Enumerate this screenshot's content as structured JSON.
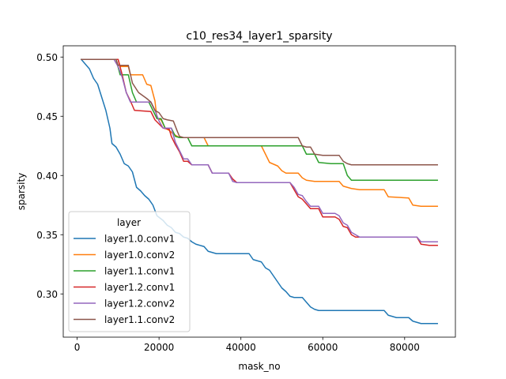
{
  "chart_data": {
    "type": "line",
    "title": "c10_res34_layer1_sparsity",
    "xlabel": "mask_no",
    "ylabel": "sparsity",
    "xlim": [
      -3400,
      92400
    ],
    "ylim": [
      0.2635,
      0.5095
    ],
    "xticks": [
      0,
      20000,
      40000,
      60000,
      80000
    ],
    "xtick_labels": [
      "0",
      "20000",
      "40000",
      "60000",
      "80000"
    ],
    "yticks": [
      0.3,
      0.35,
      0.4,
      0.45,
      0.5
    ],
    "ytick_labels": [
      "0.30",
      "0.35",
      "0.40",
      "0.45",
      "0.50"
    ],
    "grid": false,
    "legend": {
      "title": "layer",
      "location": "lower-left"
    },
    "series": [
      {
        "name": "layer1.0.conv1",
        "color": "#1f77b4",
        "points": [
          [
            1000,
            0.498
          ],
          [
            3000,
            0.49
          ],
          [
            4000,
            0.482
          ],
          [
            5000,
            0.477
          ],
          [
            6000,
            0.466
          ],
          [
            7000,
            0.455
          ],
          [
            8000,
            0.44
          ],
          [
            8500,
            0.427
          ],
          [
            9500,
            0.424
          ],
          [
            10500,
            0.418
          ],
          [
            11500,
            0.41
          ],
          [
            12500,
            0.408
          ],
          [
            13500,
            0.403
          ],
          [
            14500,
            0.39
          ],
          [
            15500,
            0.387
          ],
          [
            16500,
            0.383
          ],
          [
            17500,
            0.38
          ],
          [
            18500,
            0.375
          ],
          [
            19500,
            0.366
          ],
          [
            21000,
            0.362
          ],
          [
            22000,
            0.358
          ],
          [
            23000,
            0.356
          ],
          [
            24000,
            0.352
          ],
          [
            25000,
            0.351
          ],
          [
            26000,
            0.348
          ],
          [
            27000,
            0.347
          ],
          [
            28000,
            0.344
          ],
          [
            29000,
            0.342
          ],
          [
            31000,
            0.34
          ],
          [
            32000,
            0.336
          ],
          [
            33000,
            0.335
          ],
          [
            34000,
            0.334
          ],
          [
            42000,
            0.334
          ],
          [
            43000,
            0.329
          ],
          [
            45000,
            0.327
          ],
          [
            46000,
            0.322
          ],
          [
            47000,
            0.32
          ],
          [
            48000,
            0.315
          ],
          [
            49000,
            0.31
          ],
          [
            50000,
            0.305
          ],
          [
            51000,
            0.302
          ],
          [
            52000,
            0.298
          ],
          [
            53000,
            0.297
          ],
          [
            55000,
            0.297
          ],
          [
            56000,
            0.293
          ],
          [
            57000,
            0.289
          ],
          [
            58000,
            0.287
          ],
          [
            59000,
            0.286
          ],
          [
            75000,
            0.286
          ],
          [
            76000,
            0.282
          ],
          [
            77000,
            0.281
          ],
          [
            78000,
            0.28
          ],
          [
            81000,
            0.28
          ],
          [
            82000,
            0.277
          ],
          [
            83000,
            0.276
          ],
          [
            84000,
            0.275
          ],
          [
            88000,
            0.275
          ]
        ]
      },
      {
        "name": "layer1.0.conv2",
        "color": "#ff7f0e",
        "points": [
          [
            1000,
            0.498
          ],
          [
            10000,
            0.498
          ],
          [
            10500,
            0.492
          ],
          [
            12500,
            0.492
          ],
          [
            13000,
            0.485
          ],
          [
            16000,
            0.485
          ],
          [
            17000,
            0.477
          ],
          [
            18000,
            0.476
          ],
          [
            19000,
            0.463
          ],
          [
            19500,
            0.448
          ],
          [
            20500,
            0.447
          ],
          [
            21500,
            0.44
          ],
          [
            22500,
            0.438
          ],
          [
            23500,
            0.435
          ],
          [
            25000,
            0.432
          ],
          [
            31000,
            0.432
          ],
          [
            32000,
            0.425
          ],
          [
            45000,
            0.425
          ],
          [
            46000,
            0.418
          ],
          [
            47000,
            0.411
          ],
          [
            49000,
            0.408
          ],
          [
            50000,
            0.404
          ],
          [
            51000,
            0.402
          ],
          [
            54000,
            0.402
          ],
          [
            55000,
            0.398
          ],
          [
            56000,
            0.396
          ],
          [
            58000,
            0.395
          ],
          [
            64000,
            0.395
          ],
          [
            65000,
            0.391
          ],
          [
            67000,
            0.389
          ],
          [
            69000,
            0.388
          ],
          [
            75000,
            0.388
          ],
          [
            76000,
            0.382
          ],
          [
            81000,
            0.381
          ],
          [
            82000,
            0.375
          ],
          [
            84000,
            0.374
          ],
          [
            88000,
            0.374
          ]
        ]
      },
      {
        "name": "layer1.1.conv1",
        "color": "#2ca02c",
        "points": [
          [
            1000,
            0.498
          ],
          [
            9500,
            0.498
          ],
          [
            10500,
            0.485
          ],
          [
            12500,
            0.485
          ],
          [
            13500,
            0.47
          ],
          [
            14500,
            0.462
          ],
          [
            17500,
            0.462
          ],
          [
            18500,
            0.455
          ],
          [
            19500,
            0.448
          ],
          [
            20500,
            0.448
          ],
          [
            21500,
            0.44
          ],
          [
            23000,
            0.44
          ],
          [
            24000,
            0.433
          ],
          [
            25000,
            0.432
          ],
          [
            27000,
            0.432
          ],
          [
            28000,
            0.425
          ],
          [
            55000,
            0.425
          ],
          [
            56000,
            0.418
          ],
          [
            58000,
            0.418
          ],
          [
            59000,
            0.411
          ],
          [
            62000,
            0.41
          ],
          [
            65000,
            0.41
          ],
          [
            66000,
            0.4
          ],
          [
            67000,
            0.396
          ],
          [
            88000,
            0.396
          ]
        ]
      },
      {
        "name": "layer1.2.conv1",
        "color": "#d62728",
        "points": [
          [
            1000,
            0.498
          ],
          [
            10000,
            0.498
          ],
          [
            11000,
            0.485
          ],
          [
            12000,
            0.47
          ],
          [
            13000,
            0.463
          ],
          [
            14000,
            0.455
          ],
          [
            18000,
            0.454
          ],
          [
            19000,
            0.447
          ],
          [
            21000,
            0.44
          ],
          [
            22500,
            0.439
          ],
          [
            23000,
            0.433
          ],
          [
            24000,
            0.426
          ],
          [
            25000,
            0.42
          ],
          [
            26000,
            0.412
          ],
          [
            27000,
            0.412
          ],
          [
            28000,
            0.409
          ],
          [
            32000,
            0.409
          ],
          [
            33000,
            0.402
          ],
          [
            37000,
            0.402
          ],
          [
            38000,
            0.397
          ],
          [
            39000,
            0.394
          ],
          [
            52000,
            0.394
          ],
          [
            53000,
            0.388
          ],
          [
            54000,
            0.382
          ],
          [
            55000,
            0.38
          ],
          [
            56000,
            0.376
          ],
          [
            57000,
            0.372
          ],
          [
            59000,
            0.372
          ],
          [
            60000,
            0.365
          ],
          [
            63000,
            0.365
          ],
          [
            64000,
            0.363
          ],
          [
            65000,
            0.357
          ],
          [
            66000,
            0.356
          ],
          [
            67000,
            0.35
          ],
          [
            68000,
            0.348
          ],
          [
            83000,
            0.348
          ],
          [
            84000,
            0.342
          ],
          [
            86000,
            0.341
          ],
          [
            88000,
            0.341
          ]
        ]
      },
      {
        "name": "layer1.2.conv2",
        "color": "#9467bd",
        "points": [
          [
            1000,
            0.498
          ],
          [
            9000,
            0.498
          ],
          [
            10000,
            0.492
          ],
          [
            11000,
            0.483
          ],
          [
            12000,
            0.47
          ],
          [
            13000,
            0.462
          ],
          [
            18000,
            0.462
          ],
          [
            19000,
            0.455
          ],
          [
            20000,
            0.446
          ],
          [
            21000,
            0.44
          ],
          [
            23000,
            0.44
          ],
          [
            24000,
            0.428
          ],
          [
            25000,
            0.421
          ],
          [
            26000,
            0.414
          ],
          [
            27000,
            0.414
          ],
          [
            28000,
            0.409
          ],
          [
            32000,
            0.409
          ],
          [
            33000,
            0.402
          ],
          [
            37000,
            0.402
          ],
          [
            38000,
            0.395
          ],
          [
            39000,
            0.394
          ],
          [
            52000,
            0.394
          ],
          [
            53000,
            0.39
          ],
          [
            54000,
            0.384
          ],
          [
            55000,
            0.383
          ],
          [
            56000,
            0.378
          ],
          [
            57000,
            0.374
          ],
          [
            59000,
            0.374
          ],
          [
            60000,
            0.368
          ],
          [
            63000,
            0.368
          ],
          [
            64000,
            0.366
          ],
          [
            65000,
            0.36
          ],
          [
            66000,
            0.358
          ],
          [
            67000,
            0.352
          ],
          [
            68000,
            0.35
          ],
          [
            69000,
            0.348
          ],
          [
            83000,
            0.348
          ],
          [
            84000,
            0.344
          ],
          [
            88000,
            0.344
          ]
        ]
      },
      {
        "name": "layer1.1.conv2",
        "color": "#8c564b",
        "points": [
          [
            1000,
            0.498
          ],
          [
            9500,
            0.498
          ],
          [
            10000,
            0.493
          ],
          [
            12500,
            0.493
          ],
          [
            13500,
            0.478
          ],
          [
            15000,
            0.47
          ],
          [
            17000,
            0.465
          ],
          [
            18000,
            0.462
          ],
          [
            19000,
            0.455
          ],
          [
            20000,
            0.453
          ],
          [
            21000,
            0.448
          ],
          [
            22000,
            0.447
          ],
          [
            23500,
            0.446
          ],
          [
            24500,
            0.437
          ],
          [
            25000,
            0.433
          ],
          [
            26000,
            0.432
          ],
          [
            54000,
            0.432
          ],
          [
            55000,
            0.425
          ],
          [
            56000,
            0.424
          ],
          [
            57000,
            0.424
          ],
          [
            58000,
            0.418
          ],
          [
            60000,
            0.417
          ],
          [
            63000,
            0.417
          ],
          [
            64000,
            0.417
          ],
          [
            65000,
            0.412
          ],
          [
            66000,
            0.41
          ],
          [
            67000,
            0.409
          ],
          [
            88000,
            0.409
          ]
        ]
      }
    ]
  }
}
